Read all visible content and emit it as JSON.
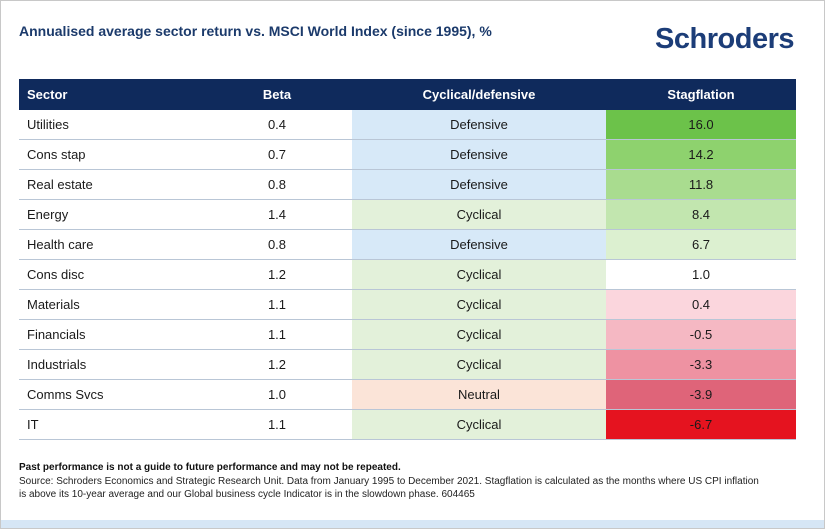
{
  "header": {
    "title": "Annualised average sector return vs. MSCI World Index (since 1995), %",
    "logo": "Schroders"
  },
  "table": {
    "columns": [
      "Sector",
      "Beta",
      "Cyclical/defensive",
      "Stagflation"
    ],
    "rows": [
      [
        "Utilities",
        "0.4",
        "Defensive",
        "16.0"
      ],
      [
        "Cons stap",
        "0.7",
        "Defensive",
        "14.2"
      ],
      [
        "Real estate",
        "0.8",
        "Defensive",
        "11.8"
      ],
      [
        "Energy",
        "1.4",
        "Cyclical",
        "8.4"
      ],
      [
        "Health care",
        "0.8",
        "Defensive",
        "6.7"
      ],
      [
        "Cons disc",
        "1.2",
        "Cyclical",
        "1.0"
      ],
      [
        "Materials",
        "1.1",
        "Cyclical",
        "0.4"
      ],
      [
        "Financials",
        "1.1",
        "Cyclical",
        "-0.5"
      ],
      [
        "Industrials",
        "1.2",
        "Cyclical",
        "-3.3"
      ],
      [
        "Comms Svcs",
        "1.0",
        "Neutral",
        "-3.9"
      ],
      [
        "IT",
        "1.1",
        "Cyclical",
        "-6.7"
      ]
    ]
  },
  "footer": {
    "note": "Past performance is not a guide to future performance and may not be repeated.",
    "source": "Source: Schroders Economics and Strategic Research Unit. Data from January 1995 to December 2021. Stagflation is calculated as the months where US CPI inflation is above its 10-year average and our Global business cycle Indicator is in the slowdown phase. 604465"
  }
}
